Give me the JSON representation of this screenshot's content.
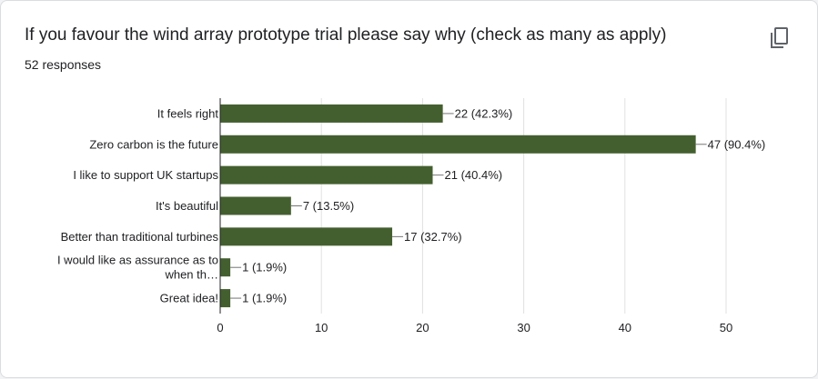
{
  "header": {
    "title": "If you favour the wind array prototype trial please say why (check as many as apply)",
    "responses": "52 responses",
    "copy_icon": "copy-icon"
  },
  "colors": {
    "bar": "#445f2f",
    "grid": "#e0e0e0",
    "axis": "#202124"
  },
  "chart_data": {
    "type": "bar",
    "orientation": "horizontal",
    "categories": [
      "It feels right",
      "Zero carbon is the future",
      "I like to support UK startups",
      "It's beautiful",
      "Better than traditional turbines",
      "I would like as assurance as to when th…",
      "Great idea!"
    ],
    "category_lines": [
      [
        "It feels right"
      ],
      [
        "Zero carbon is the future"
      ],
      [
        "I like to support UK startups"
      ],
      [
        "It's beautiful"
      ],
      [
        "Better than traditional turbines"
      ],
      [
        "I would like as assurance as to",
        "when th…"
      ],
      [
        "Great idea!"
      ]
    ],
    "values": [
      22,
      47,
      21,
      7,
      17,
      1,
      1
    ],
    "data_labels": [
      "22 (42.3%)",
      "47 (90.4%)",
      "21 (40.4%)",
      "7 (13.5%)",
      "17 (32.7%)",
      "1 (1.9%)",
      "1 (1.9%)"
    ],
    "xlim": [
      0,
      50
    ],
    "xticks": [
      0,
      10,
      20,
      30,
      40,
      50
    ],
    "grid": true,
    "title": "",
    "xlabel": "",
    "ylabel": ""
  }
}
